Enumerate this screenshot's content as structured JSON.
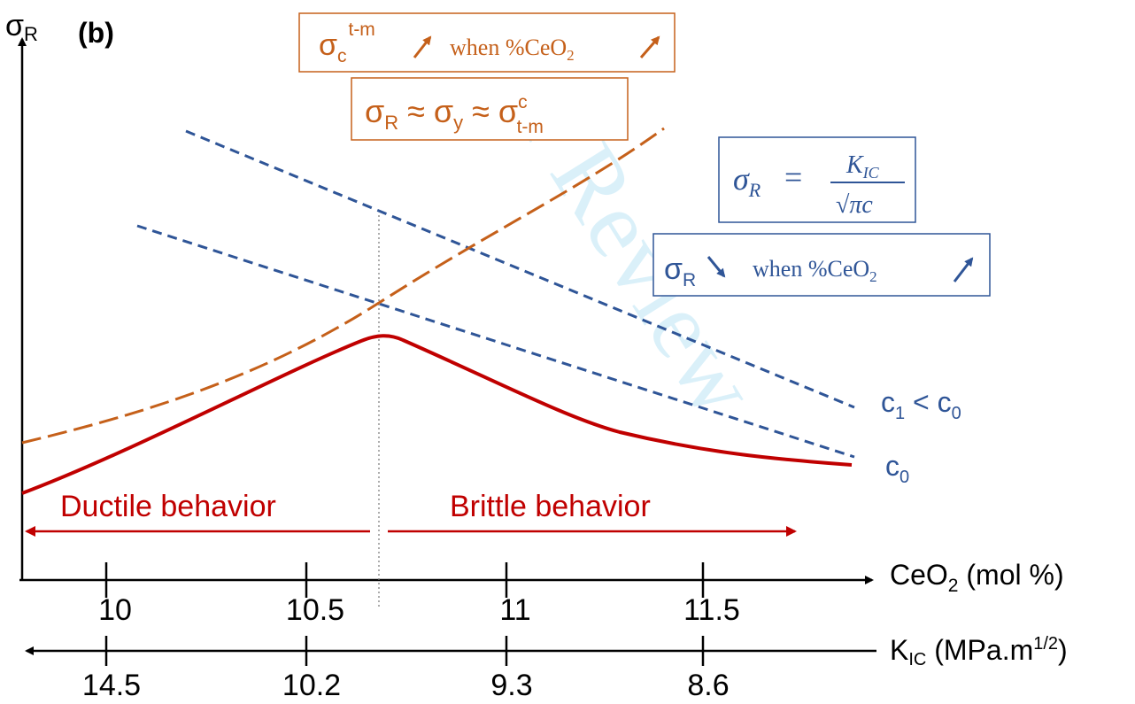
{
  "panel_label": "(b)",
  "watermark": "r Review",
  "axes": {
    "y_label": "σ",
    "y_label_sub": "R",
    "x_label_prefix": "CeO",
    "x_label_sub": "2",
    "x_label_suffix": " (mol %)",
    "k_label_prefix": "K",
    "k_label_sub": "IC",
    "k_label_mid": " (MPa.m",
    "k_label_sup": "1/2",
    "k_label_suffix": ")"
  },
  "ceo2_ticks": [
    {
      "value": 10,
      "label": "10"
    },
    {
      "value": 10.5,
      "label": "10.5"
    },
    {
      "value": 11,
      "label": "11"
    },
    {
      "value": 11.5,
      "label": "11.5"
    }
  ],
  "kic_ticks": [
    "14.5",
    "10.2",
    "9.3",
    "8.6"
  ],
  "regions": {
    "ductile": "Ductile behavior",
    "brittle": "Brittle behavior"
  },
  "curve_labels": {
    "c1_main": "c",
    "c1_sub": "1",
    "c1_mid": " < c",
    "c1_sub2": "0",
    "c0_main": "c",
    "c0_sub": "0"
  },
  "boxes": {
    "transform_stress": {
      "sigma": "σ",
      "sub": "c",
      "sup": "t-m",
      "text_when": "when %CeO",
      "text_sub": "2"
    },
    "equality": {
      "s1": "σ",
      "s1_sub": "R",
      "approx1": " ≈ ",
      "s2": "σ",
      "s2_sub": "y",
      "approx2": " ≈ ",
      "s3": "σ",
      "s3_sup": "c",
      "s3_sub": "t-m"
    },
    "fracture_formula": {
      "lhs": "σ",
      "lhs_sub": "R",
      "eq": "=",
      "num": "K",
      "num_sub": "IC",
      "den": "√πc"
    },
    "fracture_trend": {
      "sigma": "σ",
      "sub": "R",
      "text_when": "when %CeO",
      "text_sub": "2"
    }
  },
  "colors": {
    "red": "#c00000",
    "orange": "#c5601a",
    "blue": "#2f5597",
    "axis": "#000000",
    "box_orange": "#c5601a",
    "box_blue": "#2f5597"
  }
}
